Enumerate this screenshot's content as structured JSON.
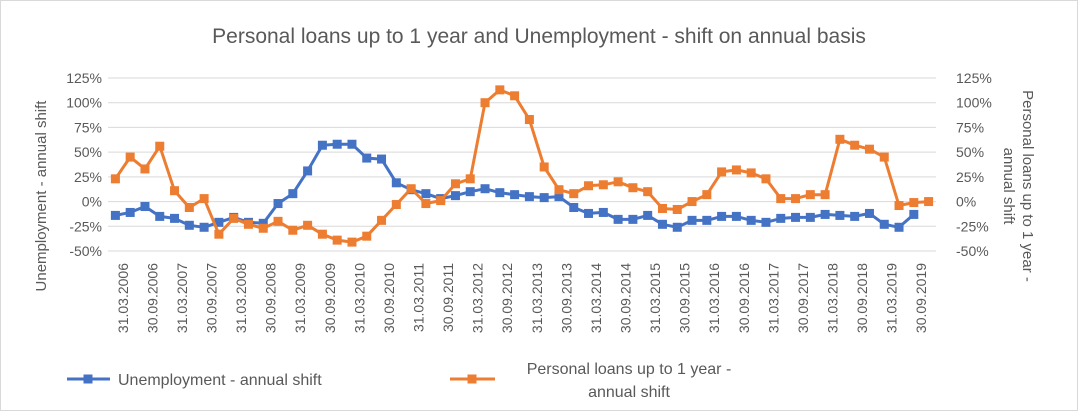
{
  "chart_data": {
    "type": "line",
    "title": "Personal loans up to 1 year and Unemployment - shift on annual basis",
    "ylabel_left": "Unemployment - annual shift",
    "ylabel_right_lines": [
      "Personal loans up to 1 year -",
      "annual shift"
    ],
    "ylim": [
      -0.5,
      1.25
    ],
    "y_ticks": [
      1.25,
      1.0,
      0.75,
      0.5,
      0.25,
      0.0,
      -0.25,
      -0.5
    ],
    "y_tick_labels": [
      "125%",
      "100%",
      "75%",
      "50%",
      "25%",
      "0%",
      "-25%",
      "-50%"
    ],
    "x_tick_labels": [
      "31.03.2006",
      "30.09.2006",
      "31.03.2007",
      "30.09.2007",
      "31.03.2008",
      "30.09.2008",
      "31.03.2009",
      "30.09.2009",
      "31.03.2010",
      "30.09.2010",
      "31.03.2011",
      "30.09.2011",
      "31.03.2012",
      "30.09.2012",
      "31.03.2013",
      "30.09.2013",
      "31.03.2014",
      "30.09.2014",
      "31.03.2015",
      "30.09.2015",
      "31.03.2016",
      "30.09.2016",
      "31.03.2017",
      "30.09.2017",
      "31.03.2018",
      "30.09.2018",
      "31.03.2019",
      "30.09.2019"
    ],
    "legend_position": "bottom",
    "grid": true,
    "series": [
      {
        "name": "Unemployment - annual shift",
        "axis": "left",
        "color": "#4472c4",
        "values": [
          -0.14,
          -0.11,
          -0.05,
          -0.15,
          -0.17,
          -0.24,
          -0.26,
          -0.21,
          -0.16,
          -0.21,
          -0.22,
          -0.02,
          0.08,
          0.31,
          0.57,
          0.58,
          0.58,
          0.44,
          0.43,
          0.19,
          0.12,
          0.08,
          0.03,
          0.06,
          0.1,
          0.13,
          0.09,
          0.07,
          0.05,
          0.04,
          0.05,
          -0.06,
          -0.12,
          -0.11,
          -0.18,
          -0.18,
          -0.14,
          -0.23,
          -0.26,
          -0.19,
          -0.19,
          -0.15,
          -0.15,
          -0.19,
          -0.21,
          -0.17,
          -0.16,
          -0.16,
          -0.13,
          -0.14,
          -0.15,
          -0.12,
          -0.23,
          -0.26,
          -0.13
        ]
      },
      {
        "name": "Personal loans up to 1 year - annual shift",
        "name_lines": [
          "Personal loans up to 1 year -",
          "annual shift"
        ],
        "axis": "right",
        "color": "#ed7d31",
        "values": [
          0.23,
          0.45,
          0.33,
          0.56,
          0.11,
          -0.06,
          0.03,
          -0.33,
          -0.17,
          -0.23,
          -0.27,
          -0.2,
          -0.29,
          -0.24,
          -0.33,
          -0.39,
          -0.41,
          -0.35,
          -0.19,
          -0.03,
          0.13,
          -0.02,
          0.01,
          0.18,
          0.23,
          1.0,
          1.13,
          1.07,
          0.83,
          0.35,
          0.12,
          0.08,
          0.16,
          0.17,
          0.2,
          0.14,
          0.1,
          -0.07,
          -0.08,
          0.0,
          0.07,
          0.3,
          0.32,
          0.29,
          0.23,
          0.03,
          0.03,
          0.07,
          0.07,
          0.63,
          0.57,
          0.53,
          0.45,
          -0.04,
          -0.01,
          0.0
        ]
      }
    ]
  }
}
